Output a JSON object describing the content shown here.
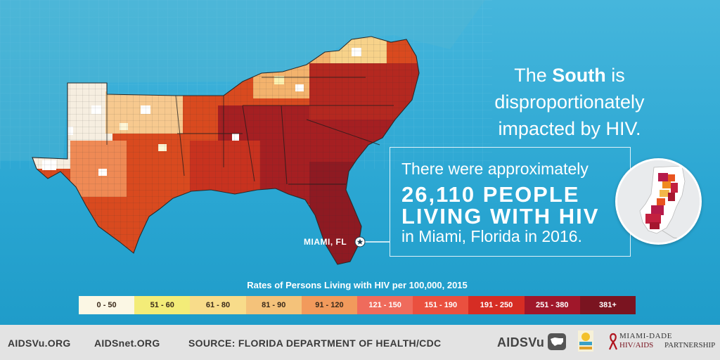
{
  "headline": {
    "line1_pre": "The ",
    "line1_strong": "South",
    "line1_post": " is",
    "line2": "disproportionately",
    "line3": "impacted by HIV."
  },
  "info": {
    "lead": "There were approximately",
    "stat_line1": "26,110 PEOPLE",
    "stat_line2": "LIVING WITH HIV",
    "tail": "in Miami, Florida in 2016."
  },
  "marker": {
    "label": "MIAMI, FL"
  },
  "legend": {
    "title": "Rates of Persons Living with HIV per 100,000, 2015",
    "bins": [
      {
        "label": "0 - 50",
        "color": "#fbf7e4"
      },
      {
        "label": "51 - 60",
        "color": "#f3ec78"
      },
      {
        "label": "61 - 80",
        "color": "#f8dc8a"
      },
      {
        "label": "81 - 90",
        "color": "#f4c27a"
      },
      {
        "label": "91 - 120",
        "color": "#f29a5c"
      },
      {
        "label": "121 - 150",
        "color": "#ef6b5c"
      },
      {
        "label": "151 - 190",
        "color": "#ea503f"
      },
      {
        "label": "191 - 250",
        "color": "#d62d24"
      },
      {
        "label": "251 - 380",
        "color": "#a0172a"
      },
      {
        "label": "381+",
        "color": "#7a1420"
      }
    ]
  },
  "footer": {
    "link1": "AIDSVu.ORG",
    "link2": "AIDSnet.ORG",
    "source": "SOURCE: FLORIDA DEPARTMENT OF HEALTH/CDC",
    "aidsvu_logo": "AIDSVu",
    "partner_line1": "MIAMI-DADE",
    "partner_line2a": "HIV/AIDS",
    "partner_line2b": "PARTNERSHIP"
  }
}
